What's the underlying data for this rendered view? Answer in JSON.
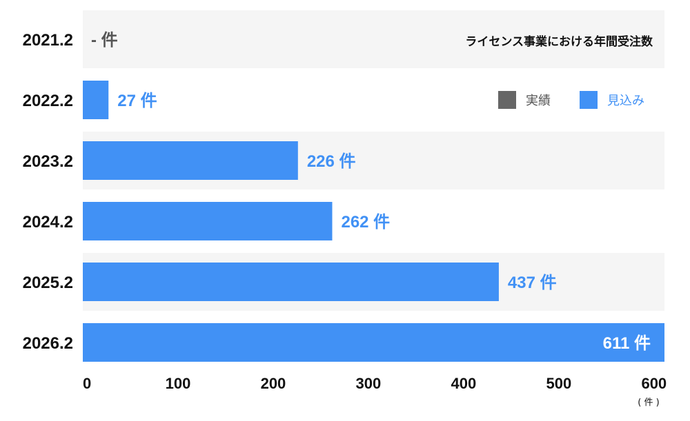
{
  "chart_data": {
    "type": "bar",
    "orientation": "horizontal",
    "title": "ライセンス事業における年間受注数",
    "categories": [
      "2021.2",
      "2022.2",
      "2023.2",
      "2024.2",
      "2025.2",
      "2026.2"
    ],
    "series": [
      {
        "name": "見込み",
        "color": "#4191f5",
        "values": [
          null,
          27,
          226,
          262,
          437,
          611
        ],
        "value_labels": [
          "- 件",
          "27 件",
          "226 件",
          "262 件",
          "437 件",
          "611 件"
        ]
      }
    ],
    "legend": {
      "placement": "top-right",
      "items": [
        {
          "label": "実績",
          "color": "#666666",
          "text_color": "#555555"
        },
        {
          "label": "見込み",
          "color": "#4191f5",
          "text_color": "#4191f5"
        }
      ]
    },
    "xaxis": {
      "ticks": [
        "0",
        "100",
        "200",
        "300",
        "400",
        "500",
        "600"
      ],
      "unit": "( 件 )",
      "xlim": [
        0,
        611
      ]
    },
    "grid": false,
    "colors": {
      "bar": "#4191f5",
      "band_odd": "#f5f5f5",
      "band_even": "#ffffff",
      "actual": "#666666",
      "empty_label": "#555555",
      "value_label": "#4191f5",
      "value_label_inside": "#ffffff"
    }
  }
}
